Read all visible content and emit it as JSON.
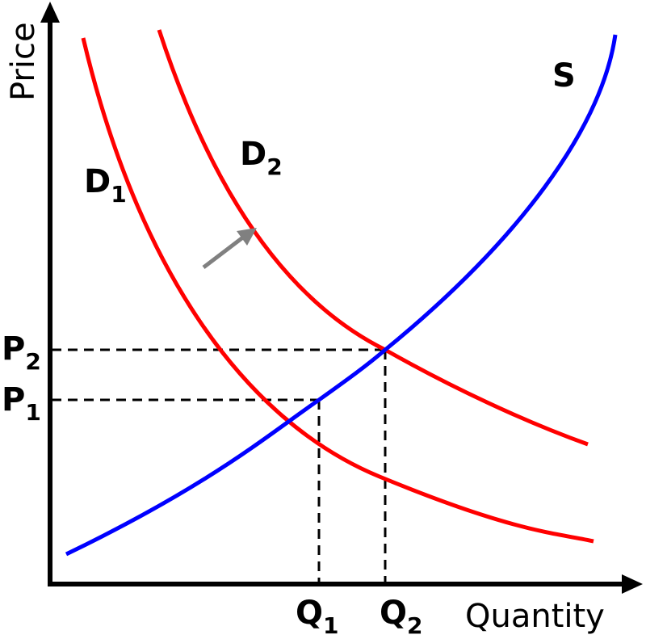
{
  "axes": {
    "y_label": "Price",
    "x_label": "Quantity"
  },
  "curves": {
    "supply": {
      "label": "S"
    },
    "demand1": {
      "label": "D",
      "sub": "1"
    },
    "demand2": {
      "label": "D",
      "sub": "2"
    }
  },
  "prices": {
    "p1": {
      "label": "P",
      "sub": "1"
    },
    "p2": {
      "label": "P",
      "sub": "2"
    }
  },
  "quantities": {
    "q1": {
      "label": "Q",
      "sub": "1"
    },
    "q2": {
      "label": "Q",
      "sub": "2"
    }
  },
  "colors": {
    "demand": "#ff0000",
    "supply": "#0000ff",
    "shift_arrow": "#808080",
    "axes": "#000000"
  }
}
